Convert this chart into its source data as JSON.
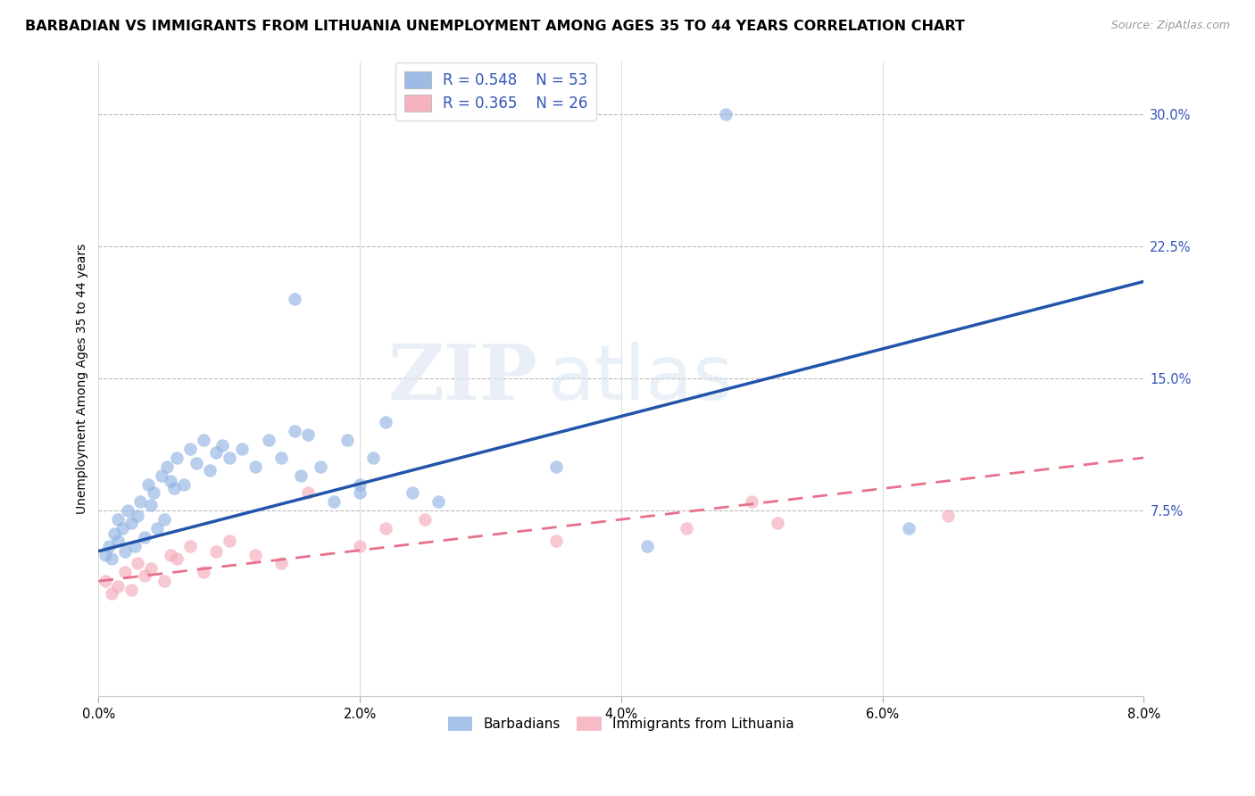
{
  "title": "BARBADIAN VS IMMIGRANTS FROM LITHUANIA UNEMPLOYMENT AMONG AGES 35 TO 44 YEARS CORRELATION CHART",
  "source": "Source: ZipAtlas.com",
  "ylabel": "Unemployment Among Ages 35 to 44 years",
  "legend_label_blue": "Barbadians",
  "legend_label_pink": "Immigrants from Lithuania",
  "blue_color": "#92B4E3",
  "pink_color": "#F4AABA",
  "blue_line_color": "#2255AA",
  "pink_line_color": "#E8708A",
  "blue_x": [
    0.05,
    0.08,
    0.1,
    0.12,
    0.15,
    0.15,
    0.18,
    0.2,
    0.22,
    0.25,
    0.28,
    0.3,
    0.32,
    0.35,
    0.38,
    0.4,
    0.42,
    0.45,
    0.48,
    0.5,
    0.52,
    0.55,
    0.58,
    0.6,
    0.65,
    0.7,
    0.75,
    0.8,
    0.85,
    0.9,
    0.95,
    1.0,
    1.1,
    1.2,
    1.3,
    1.4,
    1.5,
    1.55,
    1.6,
    1.7,
    1.8,
    1.9,
    2.0,
    2.1,
    2.2,
    2.4,
    2.6,
    3.5,
    4.2,
    6.2,
    1.5,
    2.0,
    4.8
  ],
  "blue_y": [
    5.0,
    5.5,
    4.8,
    6.2,
    5.8,
    7.0,
    6.5,
    5.2,
    7.5,
    6.8,
    5.5,
    7.2,
    8.0,
    6.0,
    9.0,
    7.8,
    8.5,
    6.5,
    9.5,
    7.0,
    10.0,
    9.2,
    8.8,
    10.5,
    9.0,
    11.0,
    10.2,
    11.5,
    9.8,
    10.8,
    11.2,
    10.5,
    11.0,
    10.0,
    11.5,
    10.5,
    12.0,
    9.5,
    11.8,
    10.0,
    8.0,
    11.5,
    9.0,
    10.5,
    12.5,
    8.5,
    8.0,
    10.0,
    5.5,
    6.5,
    19.5,
    8.5,
    30.0
  ],
  "pink_x": [
    0.05,
    0.1,
    0.15,
    0.2,
    0.25,
    0.3,
    0.35,
    0.4,
    0.5,
    0.55,
    0.6,
    0.7,
    0.8,
    0.9,
    1.0,
    1.2,
    1.4,
    1.6,
    2.0,
    2.2,
    2.5,
    3.5,
    4.5,
    5.0,
    5.2,
    6.5
  ],
  "pink_y": [
    3.5,
    2.8,
    3.2,
    4.0,
    3.0,
    4.5,
    3.8,
    4.2,
    3.5,
    5.0,
    4.8,
    5.5,
    4.0,
    5.2,
    5.8,
    5.0,
    4.5,
    8.5,
    5.5,
    6.5,
    7.0,
    5.8,
    6.5,
    8.0,
    6.8,
    7.2
  ],
  "blue_reg_x0": 0.0,
  "blue_reg_y0": 5.2,
  "blue_reg_x1": 8.0,
  "blue_reg_y1": 20.5,
  "pink_reg_x0": 0.0,
  "pink_reg_y0": 3.5,
  "pink_reg_x1": 8.0,
  "pink_reg_y1": 10.5,
  "xlim_min": 0.0,
  "xlim_max": 8.0,
  "ylim_min": -3.0,
  "ylim_max": 33.0,
  "yticks": [
    0.0,
    7.5,
    15.0,
    22.5,
    30.0
  ],
  "ytick_labels": [
    "",
    "7.5%",
    "15.0%",
    "22.5%",
    "30.0%"
  ],
  "xticks": [
    0.0,
    2.0,
    4.0,
    6.0,
    8.0
  ],
  "xtick_labels": [
    "0.0%",
    "2.0%",
    "4.0%",
    "6.0%",
    "8.0%"
  ],
  "legend_R_blue": "R = 0.548",
  "legend_N_blue": "N = 53",
  "legend_R_pink": "R = 0.365",
  "legend_N_pink": "N = 26",
  "legend_text_color": "#3355BB",
  "title_fontsize": 11.5,
  "axis_fontsize": 10,
  "tick_fontsize": 10.5
}
